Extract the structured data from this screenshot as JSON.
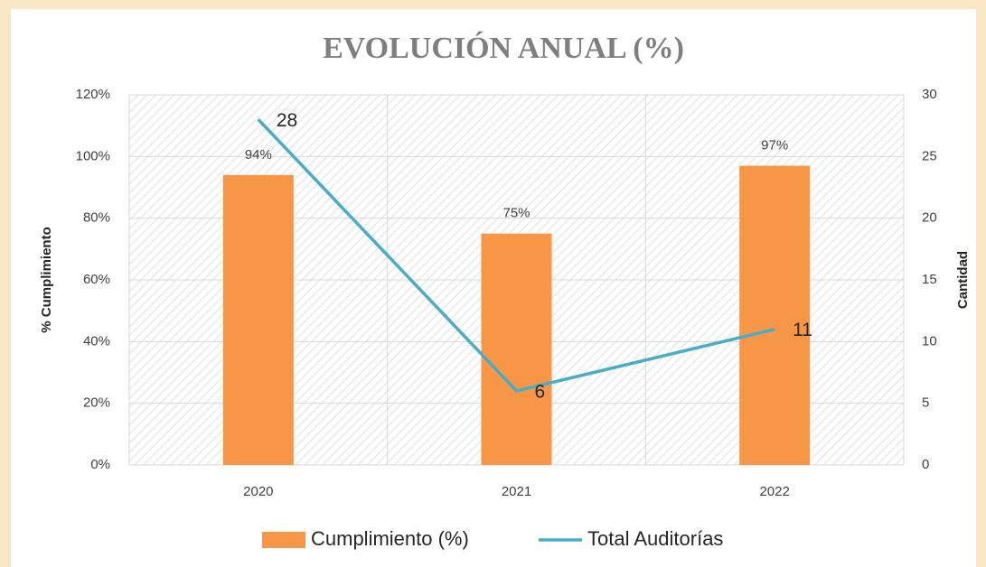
{
  "chart_data": {
    "type": "bar",
    "title": "EVOLUCIÓN ANUAL (%)",
    "categories": [
      "2020",
      "2021",
      "2022"
    ],
    "series": [
      {
        "name": "Cumplimiento (%)",
        "type": "bar",
        "color": "#f79646",
        "values": [
          94,
          75,
          97
        ],
        "value_labels": [
          "94%",
          "75%",
          "97%"
        ]
      },
      {
        "name": "Total Auditorías",
        "type": "line",
        "axis": "y2",
        "color": "#4bacc6",
        "values": [
          28,
          6,
          11
        ]
      }
    ],
    "ylabel": "% Cumplimiento",
    "y2label": "Cantidad",
    "ylim": [
      0,
      120
    ],
    "yticks": [
      {
        "value": 0,
        "label": "0%"
      },
      {
        "value": 20,
        "label": "20%"
      },
      {
        "value": 40,
        "label": "40%"
      },
      {
        "value": 60,
        "label": "60%"
      },
      {
        "value": 80,
        "label": "80%"
      },
      {
        "value": 100,
        "label": "100%"
      },
      {
        "value": 120,
        "label": "120%"
      }
    ],
    "y2lim": [
      0,
      30
    ],
    "y2ticks": [
      0,
      5,
      10,
      15,
      20,
      25,
      30
    ],
    "grid": true,
    "legend": "bottom"
  }
}
